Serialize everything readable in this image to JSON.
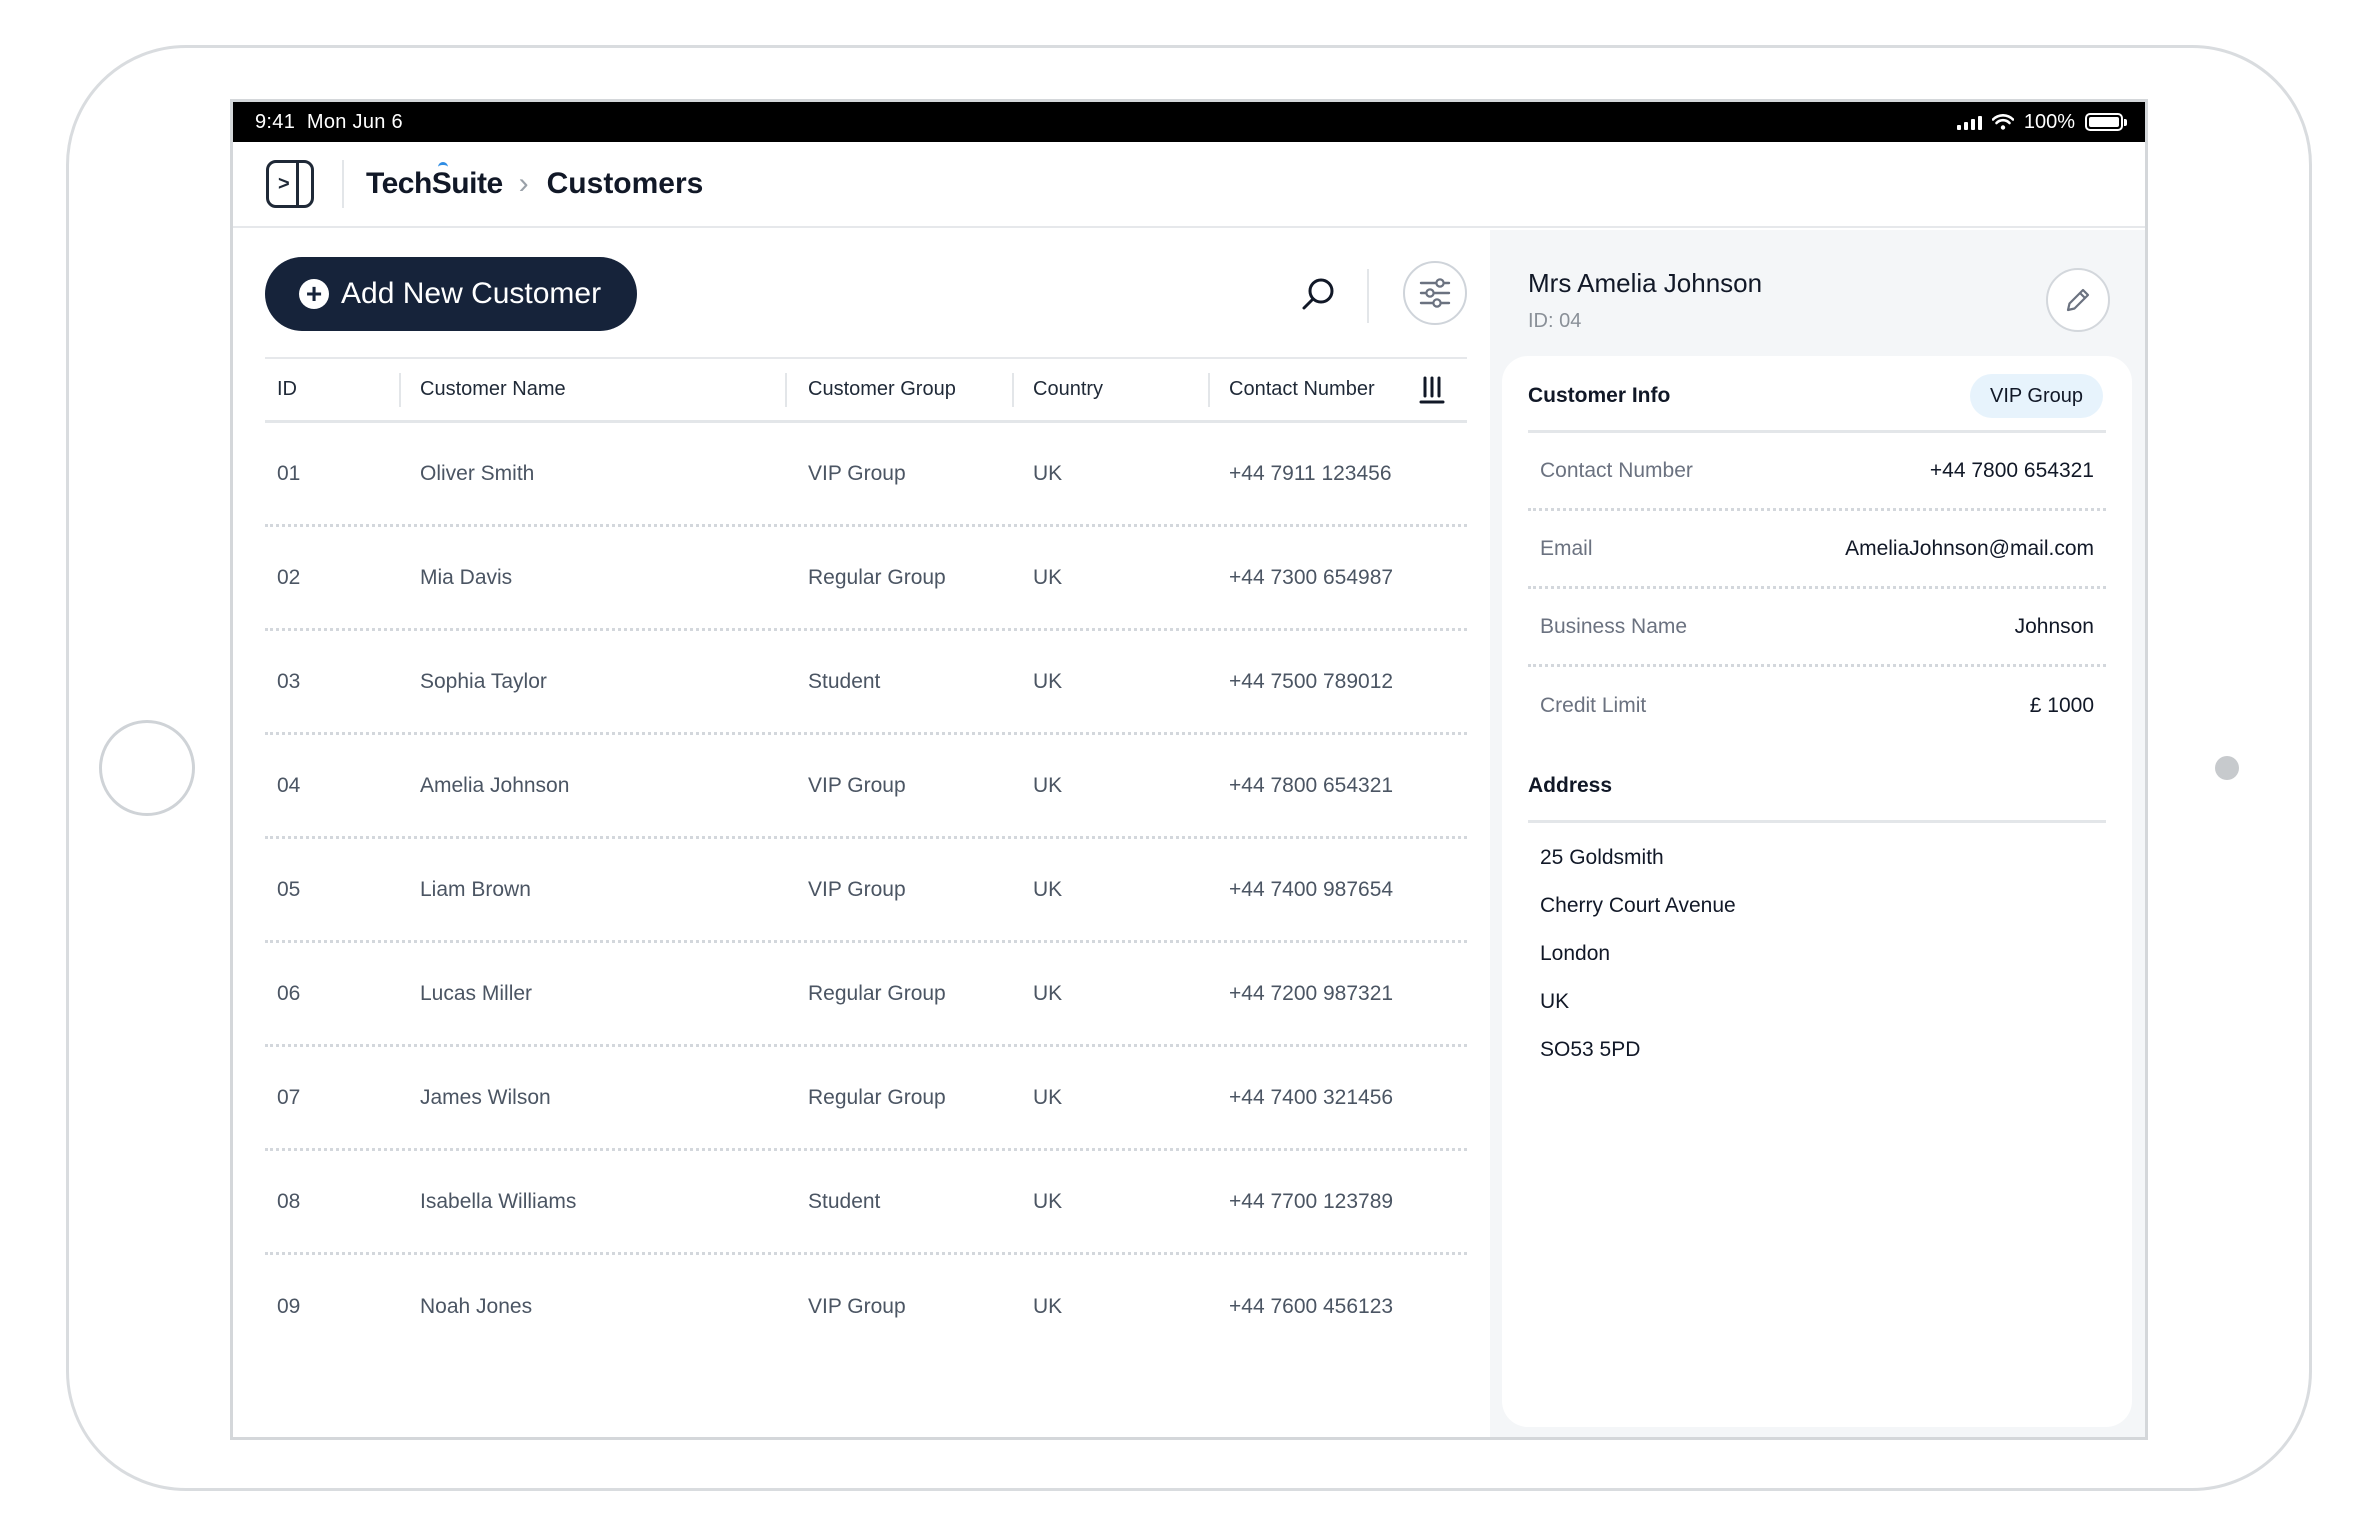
{
  "status_bar": {
    "time": "9:41",
    "date": "Mon Jun 6",
    "battery": "100%"
  },
  "header": {
    "brand": "TechSuite",
    "page_title": "Customers"
  },
  "toolbar": {
    "add_label": "Add New Customer"
  },
  "table": {
    "columns": [
      "ID",
      "Customer Name",
      "Customer Group",
      "Country",
      "Contact Number"
    ],
    "rows": [
      {
        "id": "01",
        "name": "Oliver Smith",
        "group": "VIP Group",
        "country": "UK",
        "phone": "+44 7911 123456"
      },
      {
        "id": "02",
        "name": "Mia Davis",
        "group": "Regular Group",
        "country": "UK",
        "phone": "+44 7300 654987"
      },
      {
        "id": "03",
        "name": "Sophia Taylor",
        "group": "Student",
        "country": "UK",
        "phone": "+44 7500 789012"
      },
      {
        "id": "04",
        "name": "Amelia Johnson",
        "group": "VIP Group",
        "country": "UK",
        "phone": "+44 7800 654321"
      },
      {
        "id": "05",
        "name": "Liam Brown",
        "group": "VIP Group",
        "country": "UK",
        "phone": "+44 7400 987654"
      },
      {
        "id": "06",
        "name": "Lucas Miller",
        "group": "Regular Group",
        "country": "UK",
        "phone": "+44 7200 987321"
      },
      {
        "id": "07",
        "name": "James Wilson",
        "group": "Regular Group",
        "country": "UK",
        "phone": "+44 7400 321456"
      },
      {
        "id": "08",
        "name": "Isabella Williams",
        "group": "Student",
        "country": "UK",
        "phone": "+44 7700 123789"
      },
      {
        "id": "09",
        "name": "Noah Jones",
        "group": "VIP Group",
        "country": "UK",
        "phone": "+44 7600 456123"
      }
    ]
  },
  "detail": {
    "name": "Mrs Amelia Johnson",
    "id_label": "ID: 04",
    "info_title": "Customer Info",
    "group_badge": "VIP Group",
    "info": [
      {
        "label": "Contact Number",
        "value": "+44 7800 654321"
      },
      {
        "label": "Email",
        "value": "AmeliaJohnson@mail.com"
      },
      {
        "label": "Business Name",
        "value": "Johnson"
      },
      {
        "label": "Credit Limit",
        "value": "£ 1000"
      }
    ],
    "address_title": "Address",
    "address": [
      "25 Goldsmith",
      "Cherry Court Avenue",
      "London",
      "UK",
      "SO53 5PD"
    ]
  },
  "colors": {
    "primary": "#16233a",
    "badge_bg": "#e7f3fc",
    "panel_bg": "#f4f6f8",
    "brand_accent": "#2f8de4"
  },
  "icons": [
    "sidebar-toggle-icon",
    "chevron-right-icon",
    "plus-circle-icon",
    "search-icon",
    "sliders-icon",
    "sort-icon",
    "pencil-icon",
    "signal-icon",
    "wifi-icon",
    "battery-icon"
  ]
}
